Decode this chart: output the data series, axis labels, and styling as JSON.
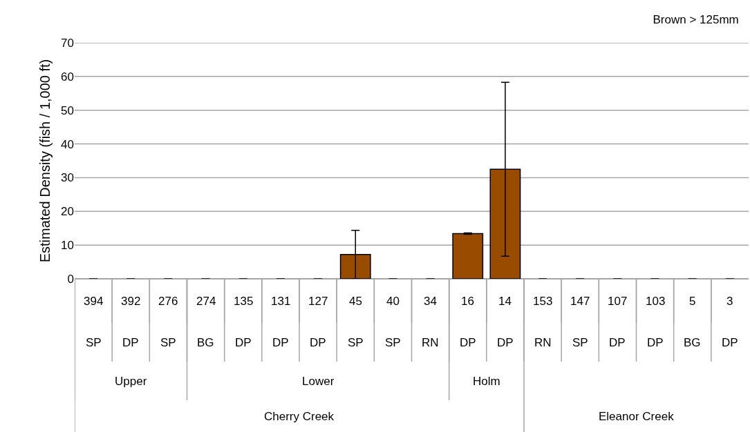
{
  "chart_data": {
    "type": "bar",
    "title": "Brown > 125mm",
    "ylabel": "Estimated Density (fish / 1,000 ft)",
    "categories": [
      "394",
      "392",
      "276",
      "274",
      "135",
      "131",
      "127",
      "45",
      "40",
      "34",
      "16",
      "14",
      "153",
      "147",
      "107",
      "103",
      "5",
      "3"
    ],
    "series": [
      {
        "color": "#994c00",
        "values": [
          0,
          0,
          0,
          0,
          0,
          0,
          0,
          7.2,
          0,
          0,
          13.4,
          32.5,
          0,
          0,
          0,
          0,
          0,
          0
        ],
        "errors": [
          null,
          null,
          null,
          null,
          null,
          null,
          null,
          7.2,
          null,
          null,
          0.2,
          25.8,
          null,
          null,
          null,
          null,
          null,
          null
        ]
      }
    ],
    "ylim": [
      0,
      70
    ],
    "yticks": [
      0,
      10,
      20,
      30,
      40,
      50,
      60,
      70
    ],
    "grid": "y",
    "legend": false,
    "annotations": [
      "SP",
      "DP",
      "SP",
      "BG",
      "DP",
      "DP",
      "DP",
      "SP",
      "SP",
      "RN",
      "DP",
      "DP",
      "RN",
      "SP",
      "DP",
      "DP",
      "BG",
      "DP",
      "Upper",
      "Lower",
      "Holm",
      "Cherry Creek",
      "Eleanor Creek"
    ]
  }
}
